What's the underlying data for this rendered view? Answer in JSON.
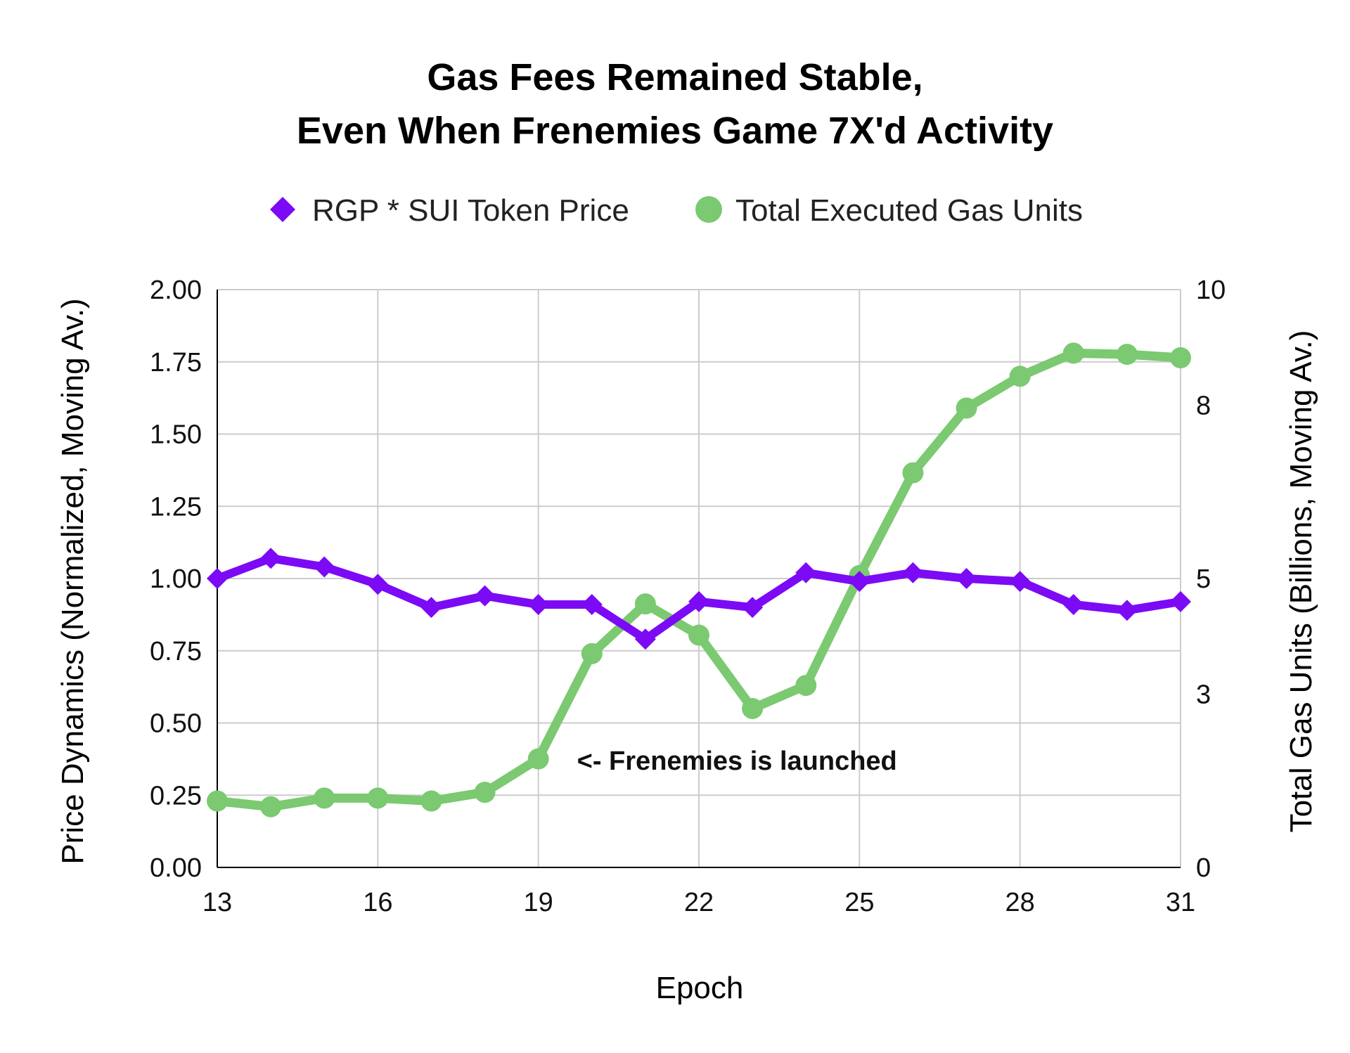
{
  "chart_data": {
    "type": "line",
    "title": "Gas Fees Remained Stable,",
    "subtitle": "Even When Frenemies Game 7X'd Activity",
    "xlabel": "Epoch",
    "ylabel_left": "Price Dynamics (Normalized, Moving Av.)",
    "ylabel_right": "Total Gas Units (Billions, Moving Av.)",
    "xlim": [
      13,
      31
    ],
    "ylim_left": [
      0,
      2
    ],
    "ylim_right": [
      0,
      10
    ],
    "x_ticks": [
      "13",
      "16",
      "19",
      "22",
      "25",
      "28",
      "31"
    ],
    "y_ticks_left": [
      "0.00",
      "0.25",
      "0.50",
      "0.75",
      "1.00",
      "1.25",
      "1.50",
      "1.75",
      "2.00"
    ],
    "y_ticks_right": [
      "0",
      "3",
      "5",
      "8",
      "10"
    ],
    "legend_position": "top-center",
    "grid": true,
    "x": [
      13,
      14,
      15,
      16,
      17,
      18,
      19,
      20,
      21,
      22,
      23,
      24,
      25,
      26,
      27,
      28,
      29,
      30,
      31
    ],
    "series": [
      {
        "name": "RGP * SUI Token Price",
        "axis": "left",
        "color": "#7c0af5",
        "marker": "diamond",
        "values": [
          1.0,
          1.07,
          1.04,
          0.98,
          0.9,
          0.94,
          0.91,
          0.91,
          0.79,
          0.92,
          0.9,
          1.02,
          0.99,
          1.02,
          1.0,
          0.99,
          0.91,
          0.89,
          0.92
        ]
      },
      {
        "name": "Total Executed Gas Units",
        "axis": "right",
        "color": "#7bc971",
        "marker": "circle",
        "values": [
          1.15,
          1.05,
          1.2,
          1.2,
          1.15,
          1.3,
          1.88,
          3.7,
          4.56,
          4.02,
          2.75,
          3.15,
          5.05,
          6.83,
          7.95,
          8.5,
          8.9,
          8.88,
          8.82
        ]
      }
    ],
    "annotations": [
      {
        "text": "<- Frenemies is launched",
        "x": 19,
        "y_left": 0.37
      }
    ]
  }
}
